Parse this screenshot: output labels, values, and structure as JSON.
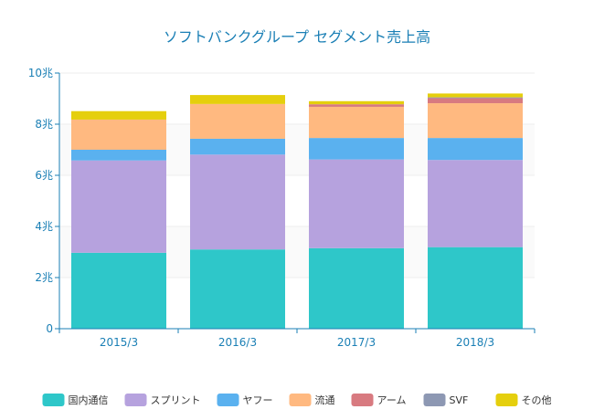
{
  "chart_data": {
    "type": "bar",
    "stacked": true,
    "title": "ソフトバンクグループ セグメント売上高",
    "xlabel": "",
    "ylabel": "",
    "categories": [
      "2015/3",
      "2016/3",
      "2017/3",
      "2018/3"
    ],
    "ylim": [
      0,
      10
    ],
    "y_ticks": [
      0,
      2,
      4,
      6,
      8,
      10
    ],
    "y_tick_labels": [
      "0",
      "2兆",
      "4兆",
      "6兆",
      "8兆",
      "10兆"
    ],
    "grid": true,
    "legend_position": "bottom",
    "series": [
      {
        "name": "国内通信",
        "color": "#2ec7c9",
        "values": [
          2.97,
          3.1,
          3.15,
          3.19
        ]
      },
      {
        "name": "スプリント",
        "color": "#b6a2de",
        "values": [
          3.61,
          3.71,
          3.47,
          3.41
        ]
      },
      {
        "name": "ヤフー",
        "color": "#5ab1ef",
        "values": [
          0.42,
          0.62,
          0.84,
          0.86
        ]
      },
      {
        "name": "流通",
        "color": "#ffb980",
        "values": [
          1.18,
          1.36,
          1.22,
          1.36
        ]
      },
      {
        "name": "アーム",
        "color": "#d87a80",
        "values": [
          0,
          0,
          0.1,
          0.2
        ]
      },
      {
        "name": "SVF",
        "color": "#8d98b3",
        "values": [
          0,
          0,
          0,
          0.03
        ]
      },
      {
        "name": "その他",
        "color": "#e5cf0d",
        "values": [
          0.33,
          0.35,
          0.12,
          0.15
        ]
      }
    ]
  }
}
